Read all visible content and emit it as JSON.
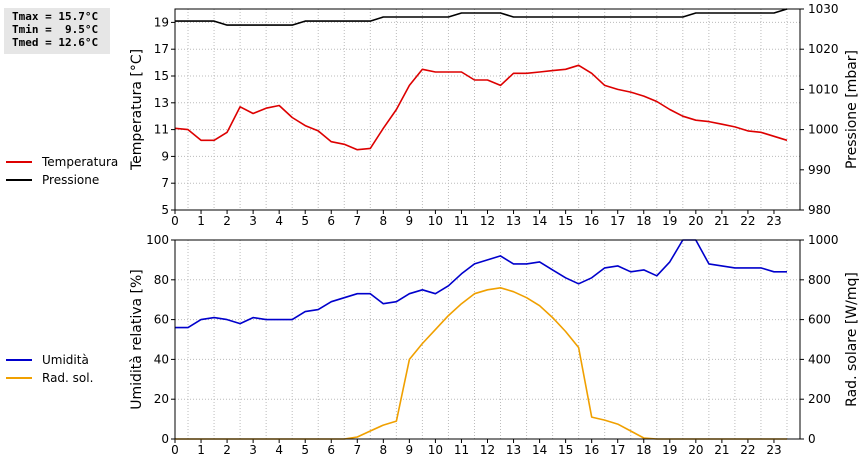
{
  "stats": {
    "tmax": "Tmax = 15.7°C",
    "tmin": "Tmin =  9.5°C",
    "tmed": "Tmed = 12.6°C"
  },
  "legends": {
    "top": [
      {
        "label": "Temperatura",
        "color": "#dd0000"
      },
      {
        "label": "Pressione",
        "color": "#000000"
      }
    ],
    "bottom": [
      {
        "label": "Umidità",
        "color": "#0000cc"
      },
      {
        "label": "Rad. sol.",
        "color": "#f0a000"
      }
    ]
  },
  "chart_data": [
    {
      "type": "line",
      "xlabel": "",
      "xlim": [
        0,
        24
      ],
      "xticks": [
        "0",
        "1",
        "2",
        "3",
        "4",
        "5",
        "6",
        "7",
        "8",
        "9",
        "10",
        "11",
        "12",
        "13",
        "14",
        "15",
        "16",
        "17",
        "18",
        "19",
        "20",
        "21",
        "22",
        "23"
      ],
      "ylabel": "Temperatura [°C]",
      "ylim": [
        5,
        20
      ],
      "yticks": [
        5,
        7,
        9,
        11,
        13,
        15,
        17,
        19
      ],
      "y2label": "Pressione [mbar]",
      "y2lim": [
        980,
        1030
      ],
      "y2ticks": [
        980,
        990,
        1000,
        1010,
        1020,
        1030
      ],
      "grid": true,
      "legend": "left",
      "series": [
        {
          "name": "Temperatura",
          "color": "#dd0000",
          "axis": "left",
          "x": [
            0,
            0.5,
            1,
            1.5,
            2,
            2.5,
            3,
            3.5,
            4,
            4.5,
            5,
            5.5,
            6,
            6.5,
            7,
            7.5,
            8,
            8.5,
            9,
            9.5,
            10,
            10.5,
            11,
            11.5,
            12,
            12.5,
            13,
            13.5,
            14,
            14.5,
            15,
            15.5,
            16,
            16.5,
            17,
            17.5,
            18,
            18.5,
            19,
            19.5,
            20,
            20.5,
            21,
            21.5,
            22,
            22.5,
            23,
            23.5
          ],
          "values": [
            11.1,
            11.0,
            10.2,
            10.2,
            10.8,
            12.7,
            12.2,
            12.6,
            12.8,
            11.9,
            11.3,
            10.9,
            10.1,
            9.9,
            9.5,
            9.6,
            11.1,
            12.5,
            14.3,
            15.5,
            15.3,
            15.3,
            15.3,
            14.7,
            14.7,
            14.3,
            15.2,
            15.2,
            15.3,
            15.4,
            15.5,
            15.8,
            15.2,
            14.3,
            14.0,
            13.8,
            13.5,
            13.1,
            12.5,
            12.0,
            11.7,
            11.6,
            11.4,
            11.2,
            10.9,
            10.8,
            10.5,
            10.2
          ]
        },
        {
          "name": "Pressione",
          "color": "#000000",
          "axis": "right",
          "x": [
            0,
            0.5,
            1,
            1.5,
            2,
            2.5,
            3,
            3.5,
            4,
            4.5,
            5,
            5.5,
            6,
            6.5,
            7,
            7.5,
            8,
            8.5,
            9,
            9.5,
            10,
            10.5,
            11,
            11.5,
            12,
            12.5,
            13,
            13.5,
            14,
            14.5,
            15,
            15.5,
            16,
            16.5,
            17,
            17.5,
            18,
            18.5,
            19,
            19.5,
            20,
            20.5,
            21,
            21.5,
            22,
            22.5,
            23,
            23.5
          ],
          "values": [
            1027,
            1027,
            1027,
            1027,
            1026,
            1026,
            1026,
            1026,
            1026,
            1026,
            1027,
            1027,
            1027,
            1027,
            1027,
            1027,
            1028,
            1028,
            1028,
            1028,
            1028,
            1028,
            1029,
            1029,
            1029,
            1029,
            1028,
            1028,
            1028,
            1028,
            1028,
            1028,
            1028,
            1028,
            1028,
            1028,
            1028,
            1028,
            1028,
            1028,
            1029,
            1029,
            1029,
            1029,
            1029,
            1029,
            1029,
            1030
          ]
        }
      ]
    },
    {
      "type": "line",
      "xlabel": "",
      "xlim": [
        0,
        24
      ],
      "xticks": [
        "0",
        "1",
        "2",
        "3",
        "4",
        "5",
        "6",
        "7",
        "8",
        "9",
        "10",
        "11",
        "12",
        "13",
        "14",
        "15",
        "16",
        "17",
        "18",
        "19",
        "20",
        "21",
        "22",
        "23"
      ],
      "ylabel": "Umidità relativa [%]",
      "ylim": [
        0,
        100
      ],
      "yticks": [
        0,
        20,
        40,
        60,
        80,
        100
      ],
      "y2label": "Rad. solare [W/mq]",
      "y2lim": [
        0,
        1000
      ],
      "y2ticks": [
        0,
        200,
        400,
        600,
        800,
        1000
      ],
      "grid": true,
      "legend": "left",
      "series": [
        {
          "name": "Umidità",
          "color": "#0000cc",
          "axis": "left",
          "x": [
            0,
            0.5,
            1,
            1.5,
            2,
            2.5,
            3,
            3.5,
            4,
            4.5,
            5,
            5.5,
            6,
            6.5,
            7,
            7.5,
            8,
            8.5,
            9,
            9.5,
            10,
            10.5,
            11,
            11.5,
            12,
            12.5,
            13,
            13.5,
            14,
            14.5,
            15,
            15.5,
            16,
            16.5,
            17,
            17.5,
            18,
            18.5,
            19,
            19.5,
            20,
            20.5,
            21,
            21.5,
            22,
            22.5,
            23,
            23.5
          ],
          "values": [
            56,
            56,
            60,
            61,
            60,
            58,
            61,
            60,
            60,
            60,
            64,
            65,
            69,
            71,
            73,
            73,
            68,
            69,
            73,
            75,
            73,
            77,
            83,
            88,
            90,
            92,
            88,
            88,
            89,
            85,
            81,
            78,
            81,
            86,
            87,
            84,
            85,
            82,
            89,
            100,
            100,
            88,
            87,
            86,
            86,
            86,
            84,
            84
          ]
        },
        {
          "name": "Rad. sol.",
          "color": "#f0a000",
          "axis": "right",
          "x": [
            0,
            0.5,
            1,
            1.5,
            2,
            2.5,
            3,
            3.5,
            4,
            4.5,
            5,
            5.5,
            6,
            6.5,
            7,
            7.5,
            8,
            8.5,
            9,
            9.5,
            10,
            10.5,
            11,
            11.5,
            12,
            12.5,
            13,
            13.5,
            14,
            14.5,
            15,
            15.5,
            16,
            16.5,
            17,
            17.5,
            18,
            18.5,
            19,
            19.5,
            20,
            20.5,
            21,
            21.5,
            22,
            22.5,
            23,
            23.5
          ],
          "values": [
            0,
            0,
            0,
            0,
            0,
            0,
            0,
            0,
            0,
            0,
            0,
            0,
            0,
            0,
            10,
            40,
            70,
            90,
            400,
            480,
            550,
            620,
            680,
            730,
            750,
            760,
            740,
            710,
            670,
            610,
            540,
            460,
            110,
            95,
            75,
            40,
            5,
            0,
            0,
            0,
            0,
            0,
            0,
            0,
            0,
            0,
            0,
            0
          ]
        }
      ]
    }
  ]
}
